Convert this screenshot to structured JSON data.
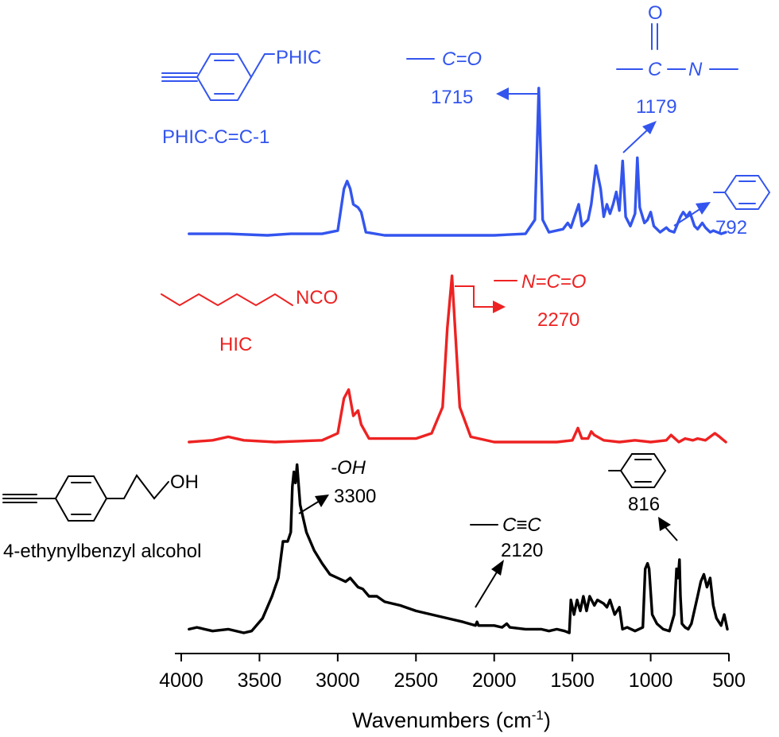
{
  "chart_data": {
    "type": "line",
    "title": "",
    "xlabel": "Wavenumbers (cm",
    "xlabel_sup": "-1",
    "xlabel_close": ")",
    "ylabel": "",
    "xlim": [
      4000,
      500
    ],
    "x_reversed": true,
    "ticks": [
      "4000",
      "3500",
      "3000",
      "2500",
      "2000",
      "1500",
      "1000",
      "500"
    ],
    "tick_values": [
      4000,
      3500,
      3000,
      2500,
      2000,
      1500,
      1000,
      500
    ],
    "grid": false,
    "legend": "none",
    "series": [
      {
        "name": "PHIC-C≡C-1",
        "color": "#3355ee",
        "points": [
          [
            3950,
            0.01
          ],
          [
            3700,
            0.01
          ],
          [
            3450,
            0.0
          ],
          [
            3300,
            0.01
          ],
          [
            3100,
            0.01
          ],
          [
            3000,
            0.03
          ],
          [
            2960,
            0.3
          ],
          [
            2940,
            0.35
          ],
          [
            2920,
            0.3
          ],
          [
            2900,
            0.2
          ],
          [
            2870,
            0.18
          ],
          [
            2850,
            0.15
          ],
          [
            2820,
            0.02
          ],
          [
            2700,
            0.0
          ],
          [
            2400,
            0.0
          ],
          [
            2000,
            0.0
          ],
          [
            1800,
            0.01
          ],
          [
            1740,
            0.1
          ],
          [
            1715,
            0.95
          ],
          [
            1690,
            0.1
          ],
          [
            1650,
            0.02
          ],
          [
            1560,
            0.04
          ],
          [
            1530,
            0.08
          ],
          [
            1510,
            0.05
          ],
          [
            1460,
            0.2
          ],
          [
            1440,
            0.06
          ],
          [
            1400,
            0.1
          ],
          [
            1380,
            0.2
          ],
          [
            1350,
            0.45
          ],
          [
            1320,
            0.3
          ],
          [
            1300,
            0.12
          ],
          [
            1280,
            0.2
          ],
          [
            1260,
            0.14
          ],
          [
            1240,
            0.2
          ],
          [
            1220,
            0.28
          ],
          [
            1200,
            0.16
          ],
          [
            1179,
            0.48
          ],
          [
            1160,
            0.12
          ],
          [
            1130,
            0.06
          ],
          [
            1100,
            0.14
          ],
          [
            1085,
            0.5
          ],
          [
            1070,
            0.18
          ],
          [
            1040,
            0.08
          ],
          [
            1020,
            0.1
          ],
          [
            1000,
            0.15
          ],
          [
            980,
            0.06
          ],
          [
            940,
            0.02
          ],
          [
            900,
            0.05
          ],
          [
            880,
            0.03
          ],
          [
            850,
            0.02
          ],
          [
            810,
            0.12
          ],
          [
            792,
            0.15
          ],
          [
            770,
            0.12
          ],
          [
            750,
            0.15
          ],
          [
            720,
            0.06
          ],
          [
            700,
            0.04
          ],
          [
            670,
            0.08
          ],
          [
            650,
            0.05
          ],
          [
            620,
            0.02
          ],
          [
            600,
            0.03
          ],
          [
            550,
            0.01
          ],
          [
            520,
            0.02
          ]
        ]
      },
      {
        "name": "HIC",
        "color": "#ee2222",
        "points": [
          [
            3950,
            0.0
          ],
          [
            3800,
            0.01
          ],
          [
            3700,
            0.03
          ],
          [
            3600,
            0.01
          ],
          [
            3400,
            0.0
          ],
          [
            3100,
            0.01
          ],
          [
            3000,
            0.05
          ],
          [
            2960,
            0.25
          ],
          [
            2930,
            0.3
          ],
          [
            2900,
            0.15
          ],
          [
            2870,
            0.18
          ],
          [
            2850,
            0.1
          ],
          [
            2800,
            0.02
          ],
          [
            2500,
            0.02
          ],
          [
            2400,
            0.05
          ],
          [
            2330,
            0.2
          ],
          [
            2300,
            0.65
          ],
          [
            2270,
            0.95
          ],
          [
            2250,
            0.65
          ],
          [
            2220,
            0.2
          ],
          [
            2150,
            0.03
          ],
          [
            2000,
            0.0
          ],
          [
            1800,
            0.0
          ],
          [
            1600,
            0.0
          ],
          [
            1500,
            0.01
          ],
          [
            1465,
            0.08
          ],
          [
            1440,
            0.02
          ],
          [
            1400,
            0.02
          ],
          [
            1380,
            0.06
          ],
          [
            1360,
            0.04
          ],
          [
            1300,
            0.01
          ],
          [
            1200,
            0.0
          ],
          [
            1100,
            0.01
          ],
          [
            1000,
            0.0
          ],
          [
            900,
            0.01
          ],
          [
            870,
            0.04
          ],
          [
            820,
            0.0
          ],
          [
            780,
            0.02
          ],
          [
            730,
            0.01
          ],
          [
            700,
            0.02
          ],
          [
            650,
            0.01
          ],
          [
            620,
            0.03
          ],
          [
            590,
            0.05
          ],
          [
            560,
            0.03
          ],
          [
            520,
            0.0
          ]
        ]
      },
      {
        "name": "4-ethynylbenzyl alcohol",
        "color": "#000000",
        "points": [
          [
            3950,
            0.02
          ],
          [
            3900,
            0.03
          ],
          [
            3800,
            0.01
          ],
          [
            3700,
            0.02
          ],
          [
            3600,
            0.0
          ],
          [
            3550,
            0.01
          ],
          [
            3480,
            0.08
          ],
          [
            3420,
            0.2
          ],
          [
            3380,
            0.3
          ],
          [
            3350,
            0.5
          ],
          [
            3320,
            0.5
          ],
          [
            3300,
            0.55
          ],
          [
            3290,
            0.8
          ],
          [
            3280,
            0.88
          ],
          [
            3270,
            0.82
          ],
          [
            3260,
            0.92
          ],
          [
            3240,
            0.7
          ],
          [
            3200,
            0.55
          ],
          [
            3150,
            0.45
          ],
          [
            3100,
            0.38
          ],
          [
            3050,
            0.32
          ],
          [
            3000,
            0.3
          ],
          [
            2950,
            0.28
          ],
          [
            2920,
            0.3
          ],
          [
            2900,
            0.28
          ],
          [
            2870,
            0.25
          ],
          [
            2840,
            0.24
          ],
          [
            2800,
            0.2
          ],
          [
            2750,
            0.2
          ],
          [
            2700,
            0.17
          ],
          [
            2600,
            0.15
          ],
          [
            2500,
            0.12
          ],
          [
            2400,
            0.1
          ],
          [
            2300,
            0.08
          ],
          [
            2200,
            0.06
          ],
          [
            2120,
            0.04
          ],
          [
            2110,
            0.06
          ],
          [
            2100,
            0.04
          ],
          [
            2000,
            0.04
          ],
          [
            1950,
            0.03
          ],
          [
            1920,
            0.05
          ],
          [
            1900,
            0.03
          ],
          [
            1800,
            0.02
          ],
          [
            1700,
            0.02
          ],
          [
            1650,
            0.01
          ],
          [
            1600,
            0.02
          ],
          [
            1550,
            0.01
          ],
          [
            1520,
            0.0
          ],
          [
            1510,
            0.18
          ],
          [
            1490,
            0.1
          ],
          [
            1470,
            0.18
          ],
          [
            1450,
            0.12
          ],
          [
            1430,
            0.2
          ],
          [
            1410,
            0.12
          ],
          [
            1390,
            0.2
          ],
          [
            1360,
            0.15
          ],
          [
            1340,
            0.18
          ],
          [
            1300,
            0.16
          ],
          [
            1280,
            0.14
          ],
          [
            1260,
            0.18
          ],
          [
            1230,
            0.1
          ],
          [
            1200,
            0.14
          ],
          [
            1180,
            0.02
          ],
          [
            1150,
            0.03
          ],
          [
            1100,
            0.01
          ],
          [
            1050,
            0.03
          ],
          [
            1035,
            0.35
          ],
          [
            1020,
            0.38
          ],
          [
            1010,
            0.35
          ],
          [
            990,
            0.1
          ],
          [
            960,
            0.05
          ],
          [
            920,
            0.02
          ],
          [
            880,
            0.01
          ],
          [
            850,
            0.1
          ],
          [
            835,
            0.35
          ],
          [
            825,
            0.3
          ],
          [
            816,
            0.4
          ],
          [
            810,
            0.2
          ],
          [
            800,
            0.05
          ],
          [
            780,
            0.03
          ],
          [
            760,
            0.02
          ],
          [
            740,
            0.05
          ],
          [
            700,
            0.2
          ],
          [
            680,
            0.28
          ],
          [
            660,
            0.32
          ],
          [
            640,
            0.25
          ],
          [
            620,
            0.3
          ],
          [
            600,
            0.15
          ],
          [
            580,
            0.08
          ],
          [
            550,
            0.04
          ],
          [
            530,
            0.1
          ],
          [
            510,
            0.02
          ]
        ]
      }
    ],
    "annotations": {
      "phic_frag": "PHIC",
      "phic_name": "PHIC-C",
      "phic_triple": "=",
      "phic_suffix": "C-1",
      "co_label": "C=O",
      "co_value": "1715",
      "amide_o": "O",
      "amide_c": "C",
      "amide_n": "N",
      "amide_value": "1179",
      "ring_value_blue": "792",
      "hic_frag": "NCO",
      "hic_name": "HIC",
      "nco_label": "N=C=O",
      "nco_value": "2270",
      "alc_frag": "OH",
      "alc_name": "4-ethynylbenzyl alcohol",
      "oh_label": "-OH",
      "oh_value": "3300",
      "cc_label_c1": "C",
      "cc_label_triple": "≡",
      "cc_label_c2": "C",
      "cc_value": "2120",
      "ring_value_black": "816"
    }
  }
}
